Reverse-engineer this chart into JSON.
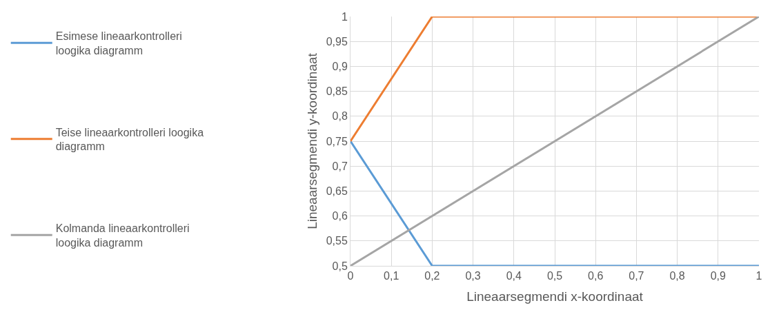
{
  "chart_data": {
    "type": "line",
    "xlabel": "Lineaarsegmendi x-koordinaat",
    "ylabel": "Lineaarsegmendi y-koordinaat",
    "series": [
      {
        "name": "Esimese lineaarkontrolleri loogika diagramm",
        "color": "#5b9bd5",
        "x": [
          0,
          0.2,
          1
        ],
        "values": [
          0.75,
          0.5,
          0.5
        ]
      },
      {
        "name": "Teise lineaarkontrolleri loogika diagramm",
        "color": "#ed7d31",
        "x": [
          0,
          0.2,
          1
        ],
        "values": [
          0.75,
          1,
          1
        ]
      },
      {
        "name": "Kolmanda lineaarkontrolleri loogika diagramm",
        "color": "#a5a5a5",
        "x": [
          0,
          1
        ],
        "values": [
          0.5,
          1
        ]
      }
    ],
    "xlim": [
      0,
      1
    ],
    "xticks": [
      0,
      {
        "value": 0.1,
        "label": "0,1"
      },
      {
        "value": 0.2,
        "label": "0,2"
      },
      {
        "value": 0.3,
        "label": "0,3"
      },
      {
        "value": 0.4,
        "label": "0,4"
      },
      {
        "value": 0.5,
        "label": "0,5"
      },
      {
        "value": 0.6,
        "label": "0,6"
      },
      {
        "value": 0.7,
        "label": "0,7"
      },
      {
        "value": 0.8,
        "label": "0,8"
      },
      {
        "value": 0.9,
        "label": "0,9"
      },
      1
    ],
    "ylim": [
      0.5,
      1
    ],
    "yticks": [
      {
        "value": 0.5,
        "label": "0,5"
      },
      {
        "value": 0.55,
        "label": "0,55"
      },
      {
        "value": 0.6,
        "label": "0,6"
      },
      {
        "value": 0.65,
        "label": "0,65"
      },
      {
        "value": 0.7,
        "label": "0,7"
      },
      {
        "value": 0.75,
        "label": "0,75"
      },
      {
        "value": 0.8,
        "label": "0,8"
      },
      {
        "value": 0.85,
        "label": "0,85"
      },
      {
        "value": 0.9,
        "label": "0,9"
      },
      {
        "value": 0.95,
        "label": "0,95"
      },
      1
    ],
    "grid": true,
    "legend": "left",
    "marker": "none",
    "line_style": "solid"
  }
}
